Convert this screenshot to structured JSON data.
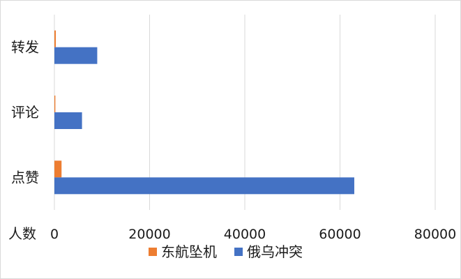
{
  "chart_data": {
    "type": "bar",
    "orientation": "horizontal",
    "categories": [
      "转发",
      "评论",
      "点赞"
    ],
    "series": [
      {
        "name": "东航坠机",
        "values": [
          300,
          200,
          1500
        ],
        "color": "#ed7d31"
      },
      {
        "name": "俄乌冲突",
        "values": [
          9000,
          5800,
          63000
        ],
        "color": "#4472c4"
      }
    ],
    "xlim": [
      0,
      80000
    ],
    "x_ticks": [
      0,
      20000,
      40000,
      60000,
      80000
    ],
    "x_tick_labels": [
      "0",
      "20000",
      "40000",
      "60000",
      "80000"
    ],
    "xlabel": "人数",
    "grid": "vertical",
    "legend_position": "bottom"
  }
}
